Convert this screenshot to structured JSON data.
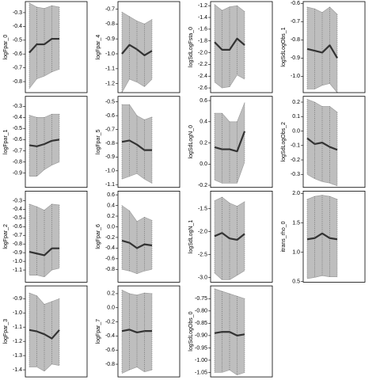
{
  "chart_data": [
    {
      "type": "band-line",
      "ylabel": "logFpar_0",
      "ylim": [
        -0.88,
        -0.22
      ],
      "yticks": [
        -0.3,
        -0.4,
        -0.5,
        -0.6,
        -0.7,
        -0.8
      ],
      "values": [
        -0.59,
        -0.53,
        -0.53,
        -0.49,
        -0.49
      ],
      "upper": [
        -0.23,
        -0.26,
        -0.27,
        -0.25,
        -0.26
      ],
      "lower": [
        -0.85,
        -0.78,
        -0.76,
        -0.73,
        -0.71
      ],
      "color": "#333333",
      "band_color": "#bebebe"
    },
    {
      "type": "band-line",
      "ylabel": "logFpar_1",
      "ylim": [
        -1.03,
        -0.21
      ],
      "yticks": [
        -0.3,
        -0.4,
        -0.5,
        -0.6,
        -0.7,
        -0.8,
        -0.9
      ],
      "values": [
        -0.65,
        -0.66,
        -0.64,
        -0.61,
        -0.6
      ],
      "upper": [
        -0.38,
        -0.4,
        -0.4,
        -0.37,
        -0.37
      ],
      "lower": [
        -0.93,
        -0.93,
        -0.87,
        -0.83,
        -0.8
      ],
      "color": "#333333",
      "band_color": "#bebebe"
    },
    {
      "type": "band-line",
      "ylabel": "logFpar_2",
      "ylim": [
        -1.24,
        -0.19
      ],
      "yticks": [
        -0.3,
        -0.4,
        -0.5,
        -0.6,
        -0.7,
        -0.8,
        -0.9,
        {
          "value": -1.0,
          "label": "-1.0"
        },
        -1.1
      ],
      "values": [
        -0.89,
        -0.91,
        -0.93,
        -0.85,
        -0.85
      ],
      "upper": [
        -0.34,
        -0.37,
        -0.41,
        -0.34,
        -0.35
      ],
      "lower": [
        -1.16,
        -1.16,
        -1.18,
        -1.1,
        -1.08
      ],
      "color": "#333333",
      "band_color": "#bebebe"
    },
    {
      "type": "band-line",
      "ylabel": "logFpar_3",
      "ylim": [
        -1.45,
        -0.81
      ],
      "yticks": [
        -0.9,
        {
          "value": -1.0,
          "label": "-1.0"
        },
        -1.1,
        -1.2,
        -1.3,
        -1.4
      ],
      "values": [
        -1.12,
        -1.13,
        -1.15,
        -1.18,
        -1.12
      ],
      "upper": [
        -0.86,
        -0.88,
        -0.94,
        -0.92,
        -0.9
      ],
      "lower": [
        -1.38,
        -1.38,
        -1.41,
        -1.36,
        -1.37
      ],
      "color": "#333333",
      "band_color": "#bebebe"
    },
    {
      "type": "band-line",
      "ylabel": "logFpar_4",
      "ylim": [
        -1.26,
        -0.65
      ],
      "yticks": [
        -0.7,
        -0.8,
        -0.9,
        {
          "value": -1.0,
          "label": "-1.0"
        },
        -1.1,
        -1.2
      ],
      "values": [
        -1.0,
        -0.94,
        -0.97,
        -1.01,
        -0.98
      ],
      "upper": [
        -0.72,
        -0.75,
        -0.78,
        -0.8,
        -0.77
      ],
      "lower": [
        -1.26,
        -1.17,
        -1.19,
        -1.22,
        -1.17
      ],
      "color": "#333333",
      "band_color": "#bebebe"
    },
    {
      "type": "band-line",
      "ylabel": "logFpar_5",
      "ylim": [
        -1.12,
        -0.46
      ],
      "yticks": [
        -0.5,
        -0.6,
        -0.7,
        -0.8,
        -0.9,
        {
          "value": -1.0,
          "label": "-1.0"
        },
        -1.1
      ],
      "values": [
        -0.79,
        -0.78,
        -0.81,
        -0.85,
        -0.85
      ],
      "upper": [
        -0.52,
        -0.52,
        -0.6,
        -0.63,
        -0.61
      ],
      "lower": [
        -1.06,
        -1.04,
        -1.02,
        -1.06,
        -1.09
      ],
      "color": "#333333",
      "band_color": "#bebebe"
    },
    {
      "type": "band-line",
      "ylabel": "logFpar_6",
      "ylim": [
        -1.04,
        0.67
      ],
      "yticks": [
        0.6,
        0.4,
        0.2,
        {
          "value": 0,
          "label": "0.0"
        },
        -0.2,
        -0.4,
        -0.6,
        -0.8
      ],
      "values": [
        -0.26,
        -0.3,
        -0.4,
        -0.33,
        -0.35
      ],
      "upper": [
        0.4,
        0.3,
        0.1,
        0.18,
        0.12
      ],
      "lower": [
        -0.8,
        -0.83,
        -0.88,
        -0.83,
        -0.8
      ],
      "color": "#333333",
      "band_color": "#bebebe"
    },
    {
      "type": "band-line",
      "ylabel": "logFpar_7",
      "ylim": [
        -0.98,
        0.31
      ],
      "yticks": [
        0.2,
        {
          "value": 0,
          "label": "0.0"
        },
        -0.2,
        -0.4,
        -0.6,
        -0.8
      ],
      "values": [
        -0.33,
        -0.31,
        -0.35,
        -0.33,
        -0.33
      ],
      "upper": [
        0.25,
        0.2,
        0.18,
        0.21,
        0.2
      ],
      "lower": [
        -0.93,
        -0.88,
        -0.84,
        -0.91,
        -0.88
      ],
      "color": "#333333",
      "band_color": "#bebebe"
    },
    {
      "type": "band-line",
      "ylabel": "logSdLogFsta_0",
      "ylim": [
        -2.68,
        -1.13
      ],
      "yticks": [
        -1.2,
        -1.4,
        -1.6,
        -1.8,
        {
          "value": -2.0,
          "label": "-2.0"
        },
        -2.2,
        -2.4,
        -2.6
      ],
      "values": [
        -1.82,
        -1.95,
        -1.95,
        -1.76,
        -1.87
      ],
      "upper": [
        -1.18,
        -1.28,
        -1.22,
        -1.2,
        -1.3
      ],
      "lower": [
        -2.5,
        -2.6,
        -2.58,
        -2.38,
        -2.45
      ],
      "color": "#333333",
      "band_color": "#bebebe"
    },
    {
      "type": "band-line",
      "ylabel": "logSdLogN_0",
      "ylim": [
        -0.22,
        0.64
      ],
      "yticks": [
        0.6,
        0.4,
        0.2,
        {
          "value": 0,
          "label": "0.0"
        },
        -0.2
      ],
      "values": [
        0.16,
        0.14,
        0.14,
        0.12,
        0.31
      ],
      "upper": [
        0.48,
        0.48,
        0.4,
        0.4,
        0.58
      ],
      "lower": [
        -0.15,
        -0.18,
        -0.18,
        -0.18,
        0.02
      ],
      "color": "#333333",
      "band_color": "#bebebe"
    },
    {
      "type": "band-line",
      "ylabel": "logSdLogN_1",
      "ylim": [
        -3.1,
        -1.12
      ],
      "yticks": [
        -1.5,
        {
          "value": -2.0,
          "label": "-2.0"
        },
        -2.5,
        {
          "value": -3.0,
          "label": "-3.0"
        }
      ],
      "values": [
        -2.1,
        -2.03,
        -2.15,
        -2.18,
        -2.05
      ],
      "upper": [
        -1.33,
        -1.25,
        -1.38,
        -1.45,
        -1.35
      ],
      "lower": [
        -2.9,
        -3.05,
        -3.05,
        -2.95,
        -2.85
      ],
      "color": "#333333",
      "band_color": "#bebebe"
    },
    {
      "type": "band-line",
      "ylabel": "logSdLogObs_0",
      "ylim": [
        -1.068,
        -0.698
      ],
      "yticks": [
        -0.75,
        {
          "value": -0.8,
          "label": "-0.80"
        },
        -0.85,
        {
          "value": -0.9,
          "label": "-0.90"
        },
        -0.95,
        {
          "value": -1.0,
          "label": "-1.00"
        },
        -1.05
      ],
      "values": [
        -0.89,
        -0.885,
        -0.885,
        -0.9,
        -0.895
      ],
      "upper": [
        -0.71,
        -0.72,
        -0.73,
        -0.74,
        -0.75
      ],
      "lower": [
        -1.05,
        -1.05,
        -1.04,
        -1.06,
        -1.05
      ],
      "color": "#333333",
      "band_color": "#bebebe"
    },
    {
      "type": "band-line",
      "ylabel": "logSdLogObs_1",
      "ylim": [
        -1.09,
        -0.59
      ],
      "yticks": [
        -0.6,
        -0.7,
        -0.8,
        -0.9,
        {
          "value": -1.0,
          "label": "-1.0"
        }
      ],
      "values": [
        -0.85,
        -0.86,
        -0.87,
        -0.83,
        -0.9
      ],
      "upper": [
        -0.62,
        -0.63,
        -0.65,
        -0.62,
        -0.66
      ],
      "lower": [
        -1.07,
        -1.07,
        -1.05,
        -1.04,
        -1.09
      ],
      "color": "#333333",
      "band_color": "#bebebe"
    },
    {
      "type": "band-line",
      "ylabel": "logSdLogObs_2",
      "ylim": [
        -0.39,
        0.24
      ],
      "yticks": [
        0.2,
        0.1,
        {
          "value": 0,
          "label": "0.0"
        },
        -0.1,
        -0.2,
        -0.3
      ],
      "values": [
        -0.05,
        -0.09,
        -0.08,
        -0.11,
        -0.13
      ],
      "upper": [
        0.22,
        0.2,
        0.17,
        0.17,
        0.13
      ],
      "lower": [
        -0.3,
        -0.33,
        -0.35,
        -0.36,
        -0.38
      ],
      "color": "#333333",
      "band_color": "#bebebe"
    },
    {
      "type": "band-line",
      "ylabel": "itrans_rho_0",
      "ylim": [
        0.49,
        2.04
      ],
      "yticks": [
        {
          "value": 2,
          "label": "2.0"
        },
        1.5,
        {
          "value": 1,
          "label": "1.0"
        },
        0.5
      ],
      "values": [
        1.22,
        1.24,
        1.32,
        1.24,
        1.22
      ],
      "upper": [
        1.9,
        1.95,
        1.97,
        1.95,
        1.9
      ],
      "lower": [
        0.55,
        0.57,
        0.6,
        0.58,
        0.58
      ],
      "color": "#333333",
      "band_color": "#bebebe"
    }
  ]
}
